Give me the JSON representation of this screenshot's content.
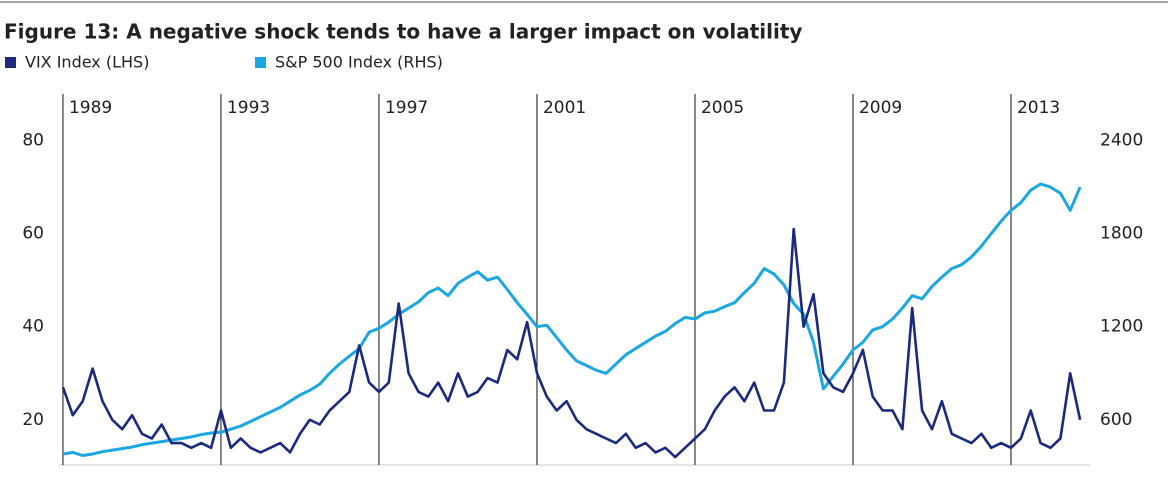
{
  "chart_data": {
    "type": "line",
    "title": "Figure 13: A negative shock tends to have a larger impact on volatility",
    "x": [
      1989,
      1989.25,
      1989.5,
      1989.75,
      1990,
      1990.25,
      1990.5,
      1990.75,
      1991,
      1991.25,
      1991.5,
      1991.75,
      1992,
      1992.25,
      1992.5,
      1992.75,
      1993,
      1993.25,
      1993.5,
      1993.75,
      1994,
      1994.25,
      1994.5,
      1994.75,
      1995,
      1995.25,
      1995.5,
      1995.75,
      1996,
      1996.25,
      1996.5,
      1996.75,
      1997,
      1997.25,
      1997.5,
      1997.75,
      1998,
      1998.25,
      1998.5,
      1998.75,
      1999,
      1999.25,
      1999.5,
      1999.75,
      2000,
      2000.25,
      2000.5,
      2000.75,
      2001,
      2001.25,
      2001.5,
      2001.75,
      2002,
      2002.25,
      2002.5,
      2002.75,
      2003,
      2003.25,
      2003.5,
      2003.75,
      2004,
      2004.25,
      2004.5,
      2004.75,
      2005,
      2005.25,
      2005.5,
      2005.75,
      2006,
      2006.25,
      2006.5,
      2006.75,
      2007,
      2007.25,
      2007.5,
      2007.75,
      2008,
      2008.25,
      2008.5,
      2008.75,
      2009,
      2009.25,
      2009.5,
      2009.75,
      2010,
      2010.25,
      2010.5,
      2010.75,
      2011,
      2011.25,
      2011.5,
      2011.75,
      2012,
      2012.25,
      2012.5,
      2012.75,
      2013,
      2013.25,
      2013.5,
      2013.75,
      2014,
      2014.25,
      2014.5,
      2014.75
    ],
    "series": [
      {
        "name": "VIX Index (LHS)",
        "color": "#1b2a7e",
        "values": [
          27,
          21,
          24,
          31,
          24,
          20,
          18,
          21,
          17,
          16,
          19,
          15,
          15,
          14,
          15,
          14,
          22,
          14,
          16,
          14,
          13,
          14,
          15,
          13,
          17,
          20,
          19,
          22,
          24,
          26,
          36,
          28,
          26,
          28,
          45,
          30,
          26,
          25,
          28,
          24,
          30,
          25,
          26,
          29,
          28,
          35,
          33,
          41,
          30,
          25,
          22,
          24,
          20,
          18,
          17,
          16,
          15,
          17,
          14,
          15,
          13,
          14,
          12,
          14,
          16,
          18,
          22,
          25,
          27,
          24,
          28,
          22,
          22,
          28,
          61,
          40,
          47,
          30,
          27,
          26,
          30,
          35,
          25,
          22,
          22,
          18,
          44,
          22,
          18,
          24,
          17,
          16,
          15,
          17,
          14,
          15,
          14,
          16,
          22,
          15,
          14,
          16,
          30,
          20
        ]
      },
      {
        "name": "S&P 500 Index (RHS)",
        "color": "#1ba7e1",
        "axis": "y2",
        "values": [
          380,
          390,
          370,
          380,
          395,
          405,
          415,
          425,
          440,
          450,
          460,
          470,
          480,
          490,
          505,
          515,
          520,
          540,
          560,
          590,
          620,
          650,
          680,
          720,
          760,
          790,
          830,
          900,
          960,
          1010,
          1060,
          1165,
          1190,
          1230,
          1280,
          1320,
          1360,
          1420,
          1450,
          1400,
          1480,
          1520,
          1555,
          1500,
          1520,
          1440,
          1355,
          1280,
          1200,
          1210,
          1130,
          1050,
          980,
          950,
          920,
          900,
          960,
          1020,
          1060,
          1100,
          1140,
          1170,
          1220,
          1260,
          1250,
          1290,
          1300,
          1330,
          1355,
          1420,
          1480,
          1575,
          1540,
          1470,
          1350,
          1280,
          1100,
          800,
          880,
          960,
          1050,
          1100,
          1180,
          1200,
          1250,
          1320,
          1400,
          1380,
          1460,
          1520,
          1575,
          1600,
          1650,
          1720,
          1800,
          1880,
          1950,
          2000,
          2080,
          2120,
          2100,
          2060,
          1950,
          2100
        ]
      }
    ],
    "xlim": [
      1988.9,
      2015
    ],
    "xticks": [
      1989,
      1993,
      1997,
      2001,
      2005,
      2009,
      2013
    ],
    "ylim": [
      10.3,
      90
    ],
    "yticks": [
      20,
      40,
      60,
      80
    ],
    "y2lim": [
      309,
      2700
    ],
    "y2ticks": [
      600,
      1200,
      1800,
      2400
    ]
  }
}
